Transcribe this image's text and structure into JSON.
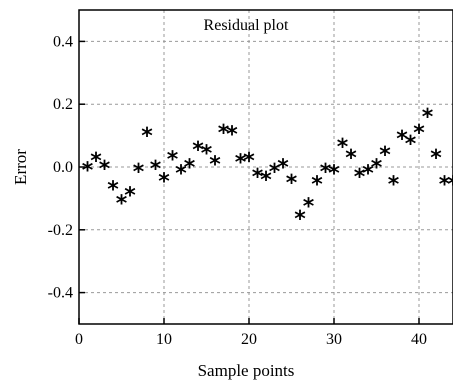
{
  "chart_data": {
    "type": "scatter",
    "title": "Residual plot",
    "xlabel": "Sample points",
    "ylabel": "Error",
    "xlim": [
      0,
      44
    ],
    "ylim": [
      -0.5,
      0.5
    ],
    "grid": true,
    "grid_style": "dashed",
    "marker": "*",
    "marker_color": "#000000",
    "x_ticks": [
      0,
      10,
      20,
      30,
      40
    ],
    "x_tick_labels": [
      "0",
      "10",
      "20",
      "30",
      "40"
    ],
    "y_ticks": [
      0.4,
      0.2,
      0.0,
      -0.2,
      -0.4
    ],
    "y_tick_labels": [
      "0.4",
      "0.2",
      "0.0",
      "-0.2",
      "-0.4"
    ],
    "series": [
      {
        "x": [
          1,
          2,
          3,
          4,
          5,
          6,
          7,
          8,
          9,
          10,
          11,
          12,
          13,
          14,
          15,
          16,
          17,
          18,
          19,
          20,
          21,
          22,
          23,
          24,
          25,
          26,
          27,
          28,
          29,
          30,
          31,
          32,
          33,
          34,
          35,
          36,
          37,
          38,
          39,
          40,
          41,
          42,
          43,
          44
        ],
        "y": [
          -0.005,
          0.025,
          0.0,
          -0.065,
          -0.11,
          -0.085,
          -0.01,
          0.105,
          0.0,
          -0.04,
          0.03,
          -0.015,
          0.005,
          0.06,
          0.05,
          0.015,
          0.115,
          0.11,
          0.02,
          0.025,
          -0.025,
          -0.035,
          -0.01,
          0.005,
          -0.045,
          -0.16,
          -0.12,
          -0.05,
          -0.01,
          -0.015,
          0.07,
          0.035,
          -0.025,
          -0.015,
          0.005,
          0.045,
          -0.05,
          0.095,
          0.08,
          0.115,
          0.165,
          0.035,
          -0.05,
          -0.05
        ]
      }
    ]
  }
}
